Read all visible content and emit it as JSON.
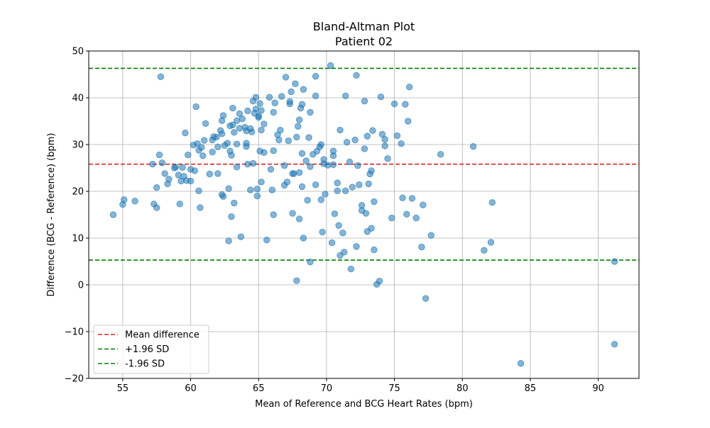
{
  "chart_data": {
    "type": "scatter",
    "title": "Bland-Altman Plot",
    "subtitle": "Patient 02",
    "xlabel": "Mean of Reference and BCG Heart Rates (bpm)",
    "ylabel": "Difference (BCG - Reference) (bpm)",
    "xlim": [
      52.5,
      93
    ],
    "ylim": [
      -20,
      50
    ],
    "xticks": [
      55,
      60,
      65,
      70,
      75,
      80,
      85,
      90
    ],
    "yticks": [
      -20,
      -10,
      0,
      10,
      20,
      30,
      40,
      50
    ],
    "grid": true,
    "legend_position": "lower-left",
    "colors": {
      "points": "#1f77b4",
      "mean_line": "#d62728",
      "sd_lines": "#008000",
      "grid": "#b0b0b0"
    },
    "reference_lines": [
      {
        "name": "Mean difference",
        "y": 25.8,
        "color": "#d62728"
      },
      {
        "name": "+1.96 SD",
        "y": 46.3,
        "color": "#008000"
      },
      {
        "name": "-1.96 SD",
        "y": 5.3,
        "color": "#008000"
      }
    ],
    "points": [
      [
        54.3,
        15.0
      ],
      [
        55.0,
        17.2
      ],
      [
        55.1,
        18.2
      ],
      [
        55.9,
        17.9
      ],
      [
        57.2,
        25.8
      ],
      [
        57.3,
        17.3
      ],
      [
        57.5,
        16.5
      ],
      [
        57.5,
        20.8
      ],
      [
        57.7,
        27.8
      ],
      [
        57.8,
        44.5
      ],
      [
        57.9,
        26.1
      ],
      [
        58.1,
        23.8
      ],
      [
        58.3,
        21.6
      ],
      [
        58.4,
        22.6
      ],
      [
        58.8,
        25.0
      ],
      [
        58.9,
        25.2
      ],
      [
        59.1,
        23.5
      ],
      [
        59.2,
        17.3
      ],
      [
        59.3,
        22.2
      ],
      [
        59.4,
        25.1
      ],
      [
        59.5,
        23.2
      ],
      [
        59.6,
        32.5
      ],
      [
        59.7,
        22.3
      ],
      [
        59.8,
        27.8
      ],
      [
        60.0,
        24.7
      ],
      [
        60.0,
        22.2
      ],
      [
        60.2,
        29.9
      ],
      [
        60.3,
        24.4
      ],
      [
        60.4,
        38.1
      ],
      [
        60.5,
        30.2
      ],
      [
        60.6,
        28.8
      ],
      [
        60.6,
        20.1
      ],
      [
        60.7,
        16.5
      ],
      [
        60.8,
        29.4
      ],
      [
        60.9,
        27.6
      ],
      [
        61.0,
        30.9
      ],
      [
        61.1,
        34.5
      ],
      [
        61.4,
        23.7
      ],
      [
        61.6,
        28.4
      ],
      [
        61.6,
        31.0
      ],
      [
        61.7,
        31.7
      ],
      [
        61.9,
        31.6
      ],
      [
        62.0,
        29.5
      ],
      [
        62.0,
        23.8
      ],
      [
        62.2,
        33.0
      ],
      [
        62.3,
        35.1
      ],
      [
        62.3,
        32.3
      ],
      [
        62.3,
        19.3
      ],
      [
        62.4,
        18.9
      ],
      [
        62.4,
        36.2
      ],
      [
        62.5,
        29.8
      ],
      [
        62.7,
        30.3
      ],
      [
        62.8,
        20.6
      ],
      [
        62.8,
        9.4
      ],
      [
        62.9,
        28.6
      ],
      [
        62.9,
        34.0
      ],
      [
        63.0,
        27.7
      ],
      [
        63.0,
        14.6
      ],
      [
        63.1,
        34.2
      ],
      [
        63.1,
        37.8
      ],
      [
        63.2,
        17.5
      ],
      [
        63.2,
        32.6
      ],
      [
        63.4,
        35.1
      ],
      [
        63.4,
        30.1
      ],
      [
        63.4,
        25.2
      ],
      [
        63.6,
        33.5
      ],
      [
        63.6,
        36.6
      ],
      [
        63.7,
        10.3
      ],
      [
        63.8,
        35.5
      ],
      [
        64.0,
        33.7
      ],
      [
        64.1,
        32.9
      ],
      [
        64.1,
        30.3
      ],
      [
        64.1,
        29.6
      ],
      [
        64.2,
        37.2
      ],
      [
        64.2,
        25.8
      ],
      [
        64.4,
        33.4
      ],
      [
        64.4,
        20.3
      ],
      [
        64.5,
        32.7
      ],
      [
        64.6,
        39.3
      ],
      [
        64.6,
        26.0
      ],
      [
        64.7,
        36.7
      ],
      [
        64.8,
        40.1
      ],
      [
        64.8,
        37.6
      ],
      [
        64.9,
        19.0
      ],
      [
        64.9,
        20.5
      ],
      [
        65.0,
        36.1
      ],
      [
        65.0,
        35.8
      ],
      [
        65.1,
        28.6
      ],
      [
        65.1,
        38.8
      ],
      [
        65.2,
        22.0
      ],
      [
        65.2,
        37.3
      ],
      [
        65.2,
        33.1
      ],
      [
        65.4,
        28.3
      ],
      [
        65.4,
        34.4
      ],
      [
        65.6,
        9.6
      ],
      [
        65.8,
        40.1
      ],
      [
        65.9,
        24.7
      ],
      [
        66.0,
        20.3
      ],
      [
        66.1,
        36.9
      ],
      [
        66.1,
        28.7
      ],
      [
        66.1,
        15.0
      ],
      [
        66.2,
        38.9
      ],
      [
        66.4,
        32.1
      ],
      [
        66.5,
        31.0
      ],
      [
        66.6,
        33.1
      ],
      [
        66.7,
        40.3
      ],
      [
        66.9,
        21.3
      ],
      [
        66.9,
        25.5
      ],
      [
        67.0,
        44.4
      ],
      [
        67.1,
        22.0
      ],
      [
        67.2,
        30.8
      ],
      [
        67.3,
        39.2
      ],
      [
        67.3,
        38.7
      ],
      [
        67.4,
        41.3
      ],
      [
        67.5,
        23.8
      ],
      [
        67.5,
        15.3
      ],
      [
        67.6,
        23.8
      ],
      [
        67.7,
        43.0
      ],
      [
        67.8,
        31.6
      ],
      [
        67.8,
        0.9
      ],
      [
        67.9,
        33.9
      ],
      [
        68.0,
        24.0
      ],
      [
        68.0,
        35.3
      ],
      [
        68.0,
        14.1
      ],
      [
        68.1,
        37.8
      ],
      [
        68.2,
        38.6
      ],
      [
        68.2,
        21.0
      ],
      [
        68.2,
        28.1
      ],
      [
        68.3,
        41.8
      ],
      [
        68.3,
        10.0
      ],
      [
        68.5,
        26.5
      ],
      [
        68.6,
        18.1
      ],
      [
        68.7,
        31.5
      ],
      [
        68.8,
        36.9
      ],
      [
        68.8,
        25.3
      ],
      [
        68.8,
        4.9
      ],
      [
        69.0,
        27.9
      ],
      [
        69.2,
        21.4
      ],
      [
        69.2,
        44.6
      ],
      [
        69.2,
        40.4
      ],
      [
        69.3,
        28.6
      ],
      [
        69.5,
        29.5
      ],
      [
        69.6,
        30.0
      ],
      [
        69.6,
        18.2
      ],
      [
        69.7,
        11.3
      ],
      [
        69.8,
        25.9
      ],
      [
        69.8,
        26.8
      ],
      [
        69.9,
        19.4
      ],
      [
        70.1,
        25.6
      ],
      [
        70.3,
        46.9
      ],
      [
        70.4,
        9.0
      ],
      [
        70.5,
        25.7
      ],
      [
        70.5,
        28.6
      ],
      [
        70.5,
        27.6
      ],
      [
        70.6,
        15.2
      ],
      [
        70.8,
        21.8
      ],
      [
        70.8,
        20.1
      ],
      [
        70.9,
        12.7
      ],
      [
        71.0,
        33.1
      ],
      [
        71.0,
        6.3
      ],
      [
        71.2,
        11.1
      ],
      [
        71.3,
        7.0
      ],
      [
        71.4,
        20.1
      ],
      [
        71.4,
        40.4
      ],
      [
        71.5,
        30.5
      ],
      [
        71.7,
        26.3
      ],
      [
        71.8,
        3.4
      ],
      [
        71.9,
        20.9
      ],
      [
        72.1,
        31.0
      ],
      [
        72.2,
        44.8
      ],
      [
        72.2,
        8.2
      ],
      [
        72.3,
        25.5
      ],
      [
        72.4,
        21.4
      ],
      [
        72.6,
        15.9
      ],
      [
        72.6,
        17.0
      ],
      [
        72.8,
        29.1
      ],
      [
        72.8,
        39.3
      ],
      [
        72.9,
        15.3
      ],
      [
        73.0,
        31.8
      ],
      [
        73.0,
        11.4
      ],
      [
        73.1,
        21.6
      ],
      [
        73.2,
        23.7
      ],
      [
        73.3,
        24.4
      ],
      [
        73.3,
        12.1
      ],
      [
        73.4,
        33.0
      ],
      [
        73.5,
        7.5
      ],
      [
        73.5,
        17.8
      ],
      [
        73.7,
        0.1
      ],
      [
        73.9,
        0.8
      ],
      [
        74.0,
        40.2
      ],
      [
        74.1,
        32.2
      ],
      [
        74.3,
        31.1
      ],
      [
        74.3,
        29.7
      ],
      [
        74.5,
        27.0
      ],
      [
        74.8,
        14.3
      ],
      [
        75.0,
        38.7
      ],
      [
        75.2,
        31.9
      ],
      [
        75.5,
        30.2
      ],
      [
        75.6,
        18.6
      ],
      [
        75.8,
        38.6
      ],
      [
        75.9,
        15.1
      ],
      [
        76.0,
        35.0
      ],
      [
        76.1,
        42.3
      ],
      [
        76.3,
        18.5
      ],
      [
        76.6,
        14.3
      ],
      [
        77.0,
        8.1
      ],
      [
        77.1,
        17.1
      ],
      [
        77.3,
        -2.9
      ],
      [
        77.7,
        10.6
      ],
      [
        78.4,
        27.9
      ],
      [
        80.8,
        29.6
      ],
      [
        81.6,
        7.4
      ],
      [
        82.1,
        9.1
      ],
      [
        82.2,
        17.6
      ],
      [
        84.3,
        -16.8
      ],
      [
        91.2,
        -12.7
      ],
      [
        91.2,
        5.0
      ]
    ]
  }
}
